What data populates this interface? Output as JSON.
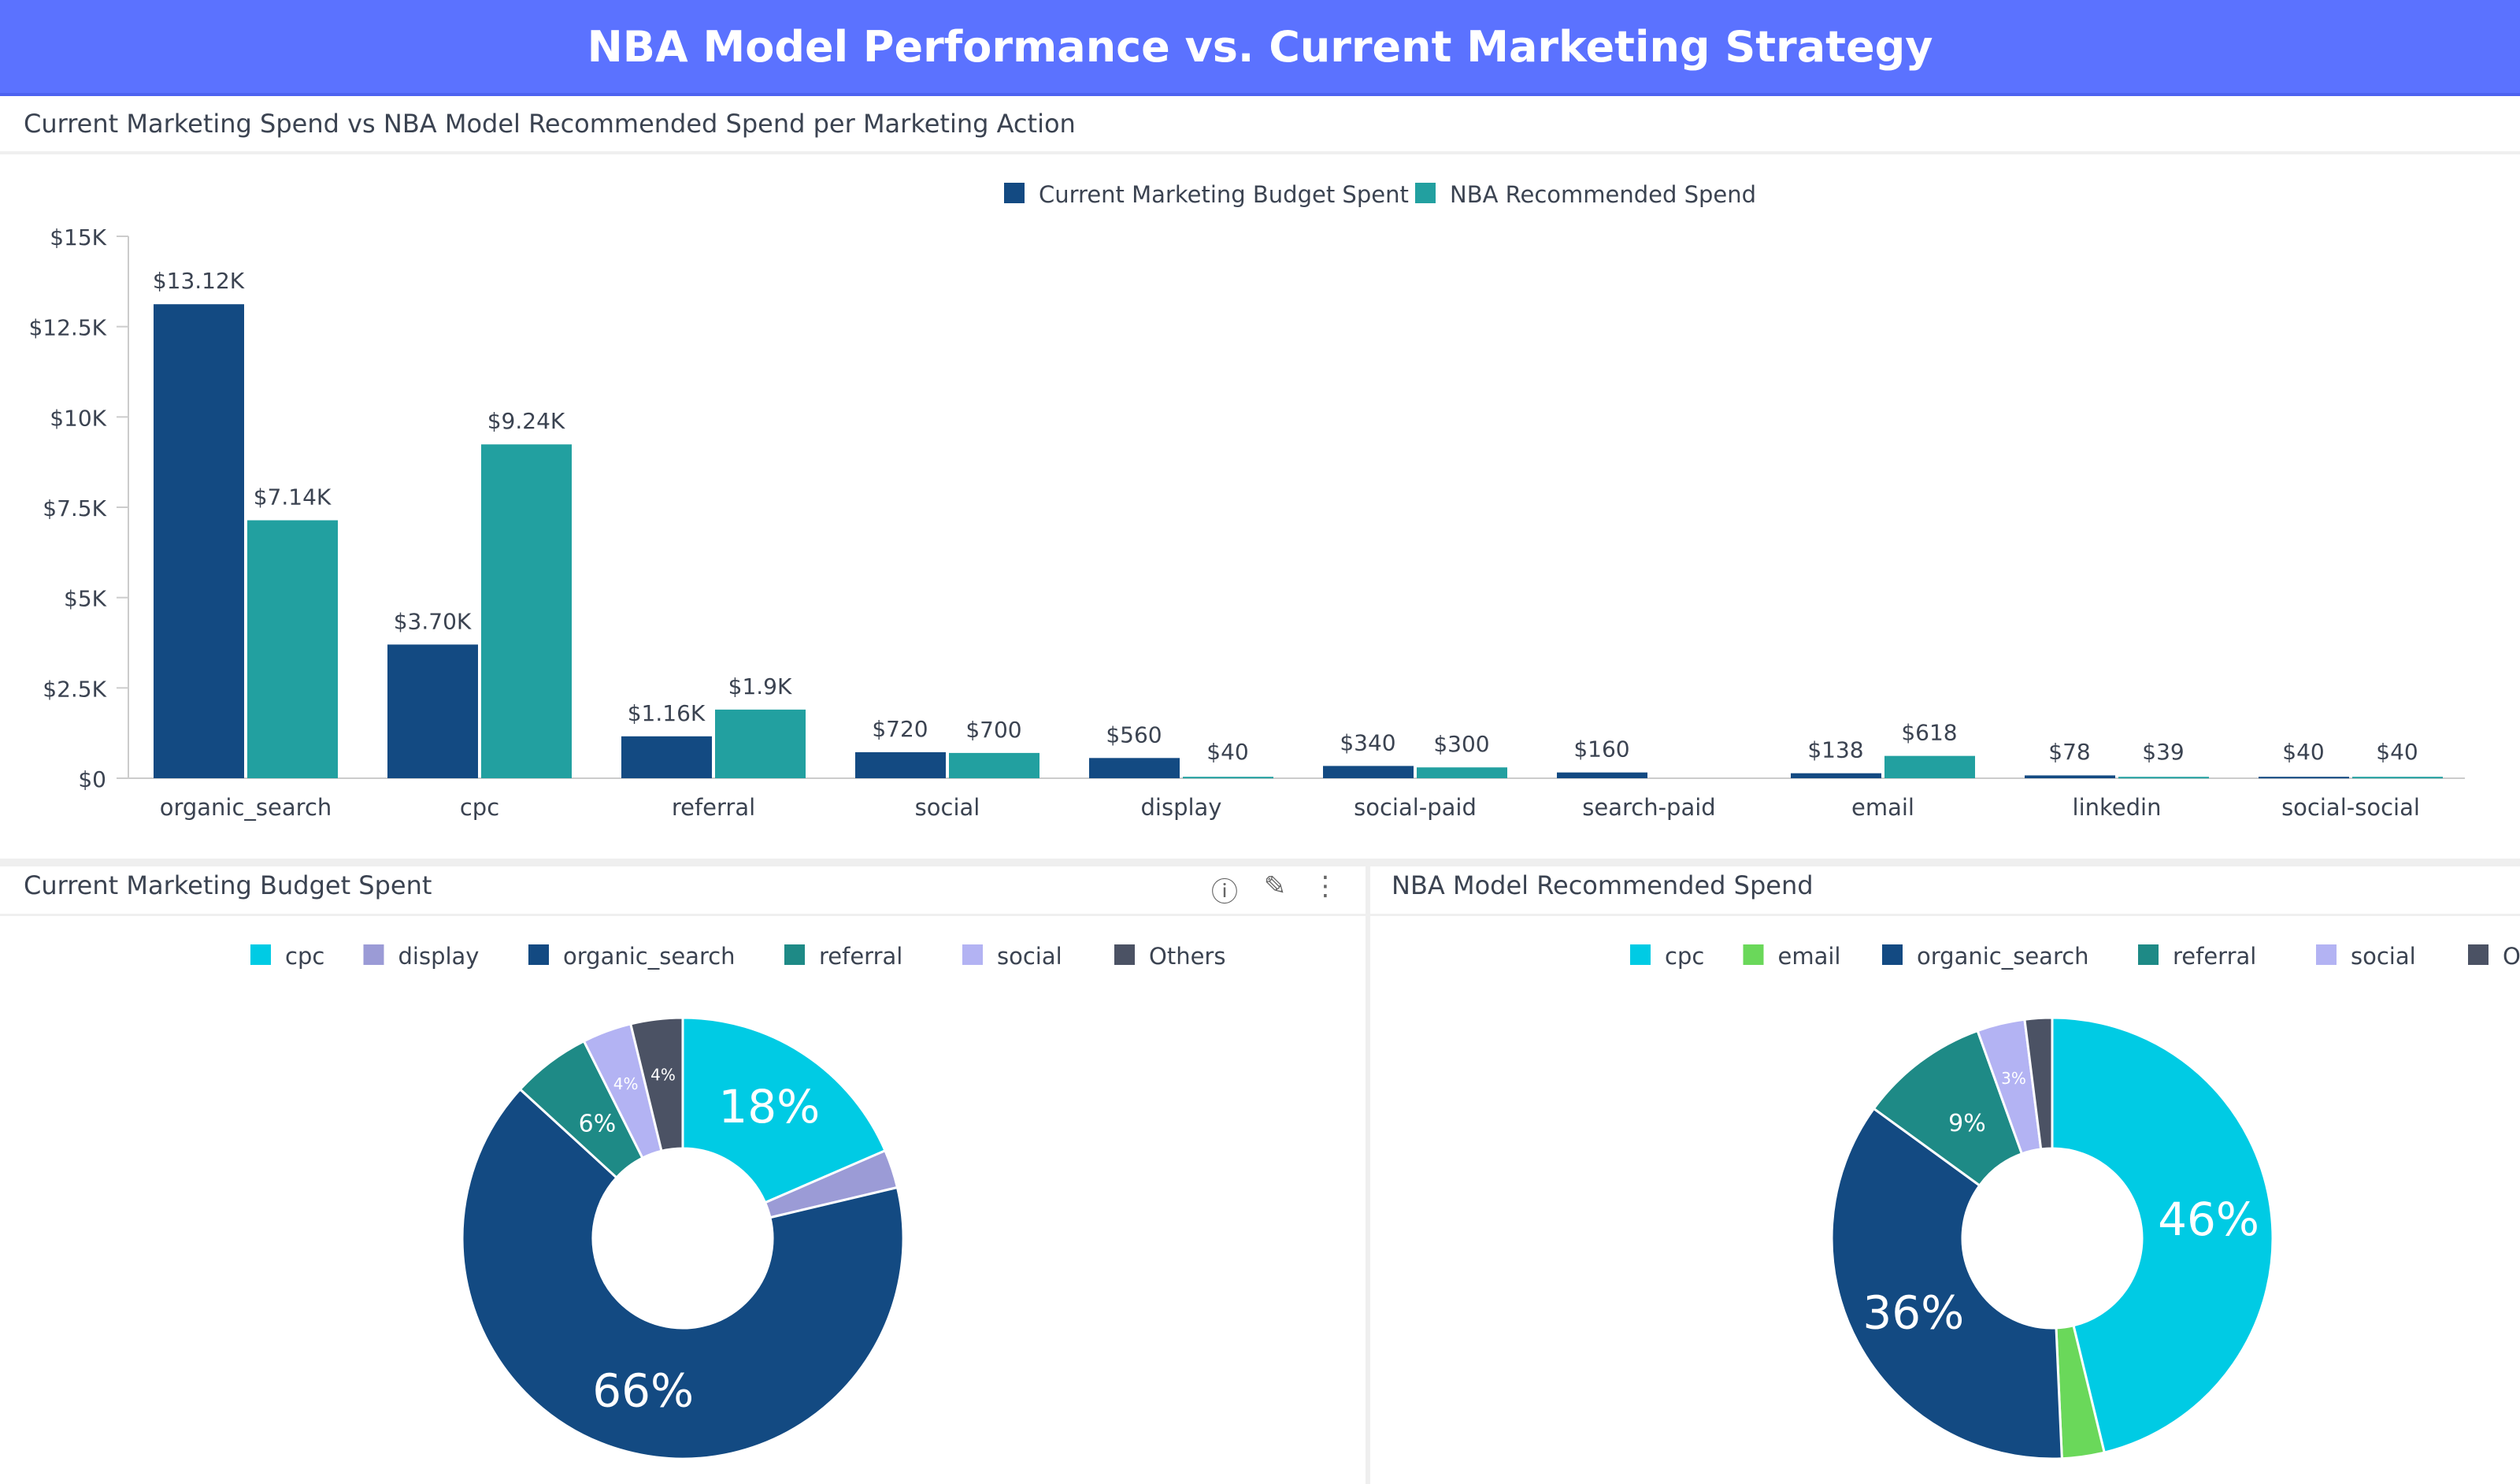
{
  "header": {
    "title": "NBA Model Performance vs. Current Marketing Strategy"
  },
  "panels": {
    "bar_title": "Current Marketing Spend vs NBA Model Recommended Spend per Marketing Action",
    "left_title": "Current Marketing Budget Spent",
    "right_title": "NBA Model Recommended Spend",
    "icons": [
      "info-icon",
      "pencil-icon",
      "more-vertical-icon"
    ]
  },
  "chart_data": [
    {
      "type": "bar",
      "title": "Current Marketing Spend vs NBA Model Recommended Spend per Marketing Action",
      "categories": [
        "organic_search",
        "cpc",
        "referral",
        "social",
        "display",
        "social-paid",
        "search-paid",
        "email",
        "linkedin",
        "social-social"
      ],
      "series": [
        {
          "name": "Current Marketing Budget Spent",
          "color": "#134a82",
          "values": [
            13120,
            3700,
            1160,
            720,
            560,
            340,
            160,
            138,
            78,
            40
          ],
          "labels": [
            "$13.12K",
            "$3.70K",
            "$1.16K",
            "$720",
            "$560",
            "$340",
            "$160",
            "$138",
            "$78",
            "$40"
          ]
        },
        {
          "name": "NBA Recommended Spend",
          "color": "#22a0a0",
          "values": [
            7140,
            9240,
            1900,
            700,
            40,
            300,
            0,
            618,
            39,
            40
          ],
          "labels": [
            "$7.14K",
            "$9.24K",
            "$1.9K",
            "$700",
            "$40",
            "$300",
            "",
            "$618",
            "$39",
            "$40"
          ]
        }
      ],
      "yticks": [
        "$0",
        "$2.5K",
        "$5K",
        "$7.5K",
        "$10K",
        "$12.5K",
        "$15K"
      ],
      "ylim": [
        0,
        15000
      ],
      "legend": "top"
    },
    {
      "type": "pie",
      "title": "Current Marketing Budget Spent",
      "legend": "top",
      "categories": [
        "cpc",
        "display",
        "organic_search",
        "referral",
        "social",
        "Others"
      ],
      "colors": [
        "#00cbe4",
        "#9b9bd6",
        "#134a82",
        "#1e8a86",
        "#b3b3f3",
        "#4b5264"
      ],
      "values": [
        18.5,
        2.8,
        65.5,
        5.8,
        3.6,
        3.8
      ],
      "labels": [
        "18%",
        "",
        "66%",
        "6%",
        "4%",
        "4%"
      ]
    },
    {
      "type": "pie",
      "title": "NBA Model Recommended Spend",
      "legend": "top",
      "categories": [
        "cpc",
        "email",
        "organic_search",
        "referral",
        "social",
        "Others"
      ],
      "colors": [
        "#00cbe4",
        "#6ad85a",
        "#134a82",
        "#1e8a86",
        "#b3b3f3",
        "#4b5264"
      ],
      "values": [
        46.2,
        3.1,
        35.7,
        9.5,
        3.5,
        2.0
      ],
      "labels": [
        "46%",
        "",
        "36%",
        "9%",
        "3%",
        ""
      ]
    }
  ]
}
